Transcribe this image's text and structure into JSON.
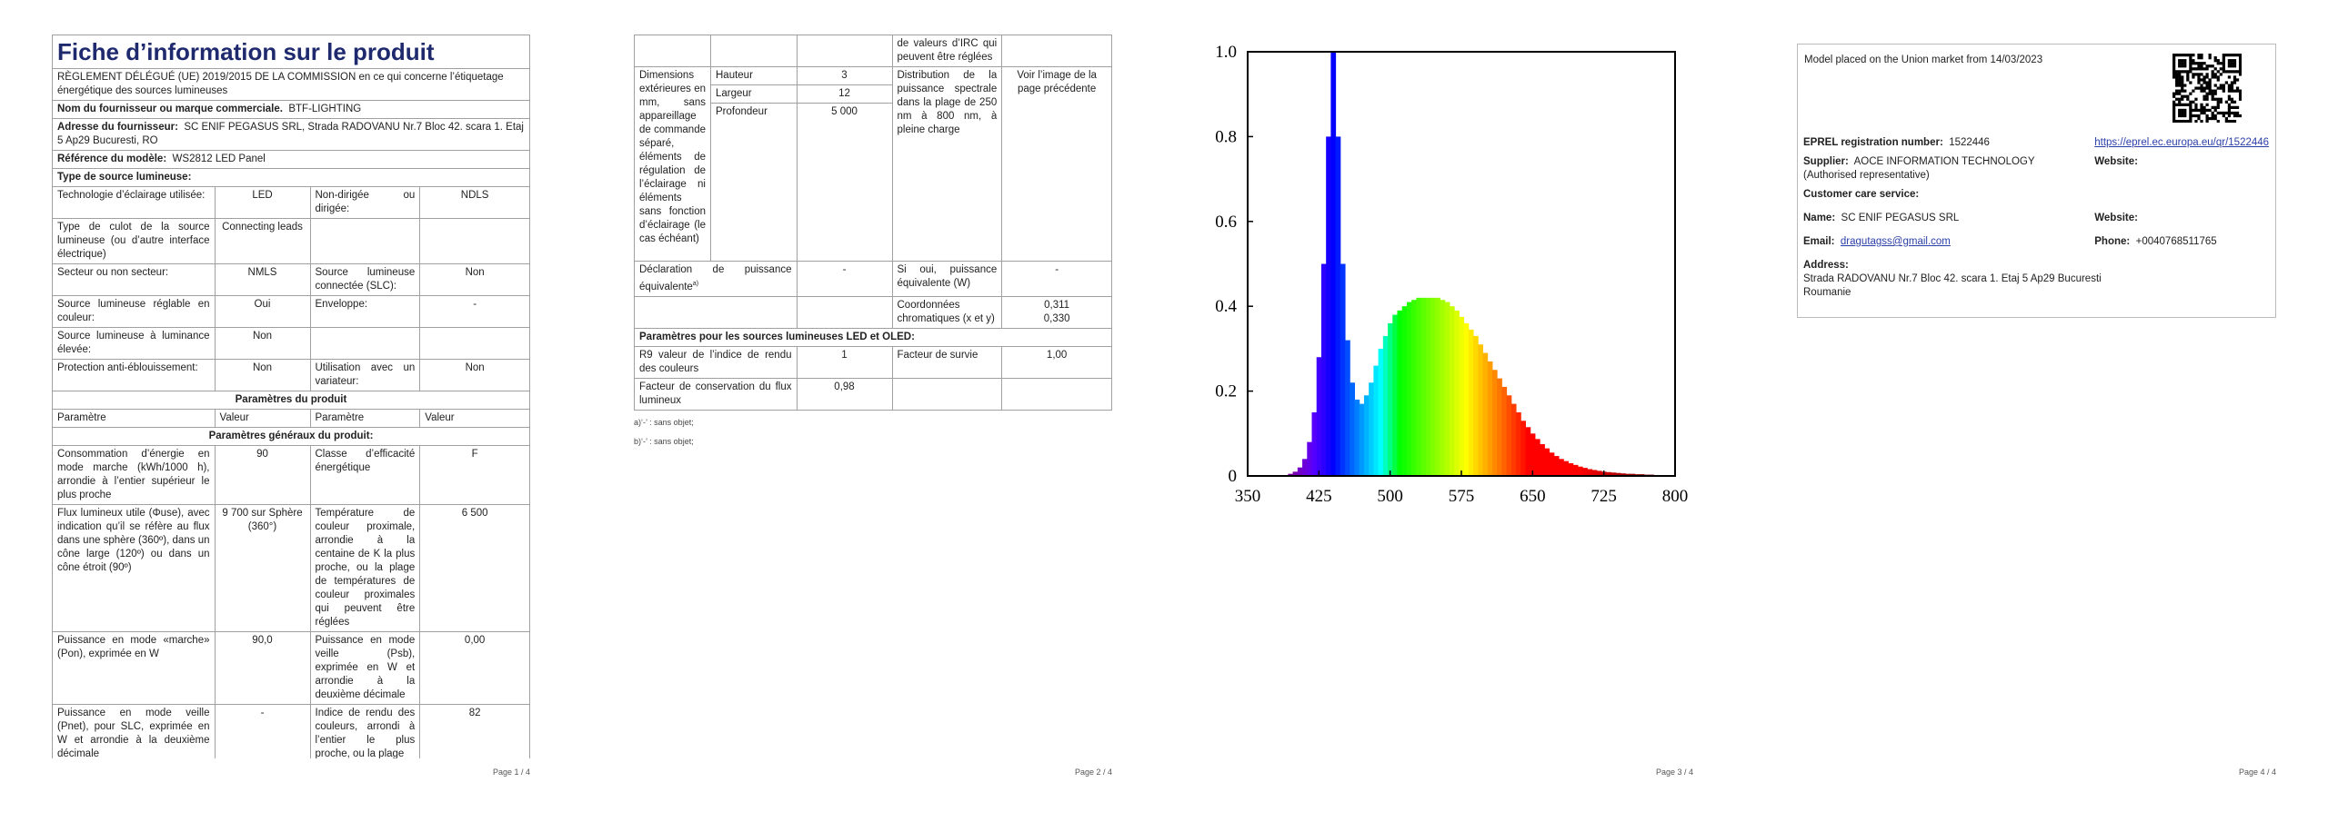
{
  "page1": {
    "title": "Fiche d’information sur le produit",
    "regulation": "RÈGLEMENT DÉLÉGUÉ (UE) 2019/2015 DE LA COMMISSION en ce qui concerne l’étiquetage énergétique des sources lumineuses",
    "supplier": {
      "label": "Nom du fournisseur ou marque commerciale.",
      "value": "BTF-LIGHTING"
    },
    "address": {
      "label": "Adresse du fournisseur:",
      "value": "SC ENIF PEGASUS SRL, Strada RADOVANU Nr.7 Bloc 42. scara 1. Etaj 5 Ap29 Bucuresti, RO"
    },
    "model": {
      "label": "Référence du modèle:",
      "value": "WS2812 LED Panel"
    },
    "source_type_heading": "Type de source lumineuse:",
    "source_rows": [
      [
        "Technologie d’éclairage utilisée:",
        "LED",
        "Non-dirigée ou dirigée:",
        "NDLS"
      ],
      [
        "Type de culot de la source lumineuse (ou d’autre interface électrique)",
        "Connecting leads",
        null,
        null
      ],
      [
        "Secteur ou non secteur:",
        "NMLS",
        "Source lumineuse connectée (SLC):",
        "Non"
      ],
      [
        "Source lumineuse réglable en couleur:",
        "Oui",
        "Enveloppe:",
        "-"
      ],
      [
        "Source lumineuse à luminance élevée:",
        "Non",
        null,
        null
      ],
      [
        "Protection anti-éblouissement:",
        "Non",
        "Utilisation avec un variateur:",
        "Non"
      ]
    ],
    "params_heading": "Paramètres du produit",
    "params_header": [
      "Paramètre",
      "Valeur",
      "Paramètre",
      "Valeur"
    ],
    "general_heading": "Paramètres généraux du produit:",
    "general_rows": [
      [
        "Consommation d’énergie en mode marche (kWh/1000 h), arrondie à l’entier supérieur le plus proche",
        "90",
        "Classe d’efficacité énergétique",
        "F"
      ],
      [
        "Flux lumineux utile (Φuse), avec indication qu’il se réfère au flux dans une sphère (360º), dans un cône large (120º) ou dans un cône étroit (90º)",
        "9 700 sur Sphère (360°)",
        "Température de couleur proximale, arrondie à la centaine de K la plus proche, ou la plage de températures de couleur proximales qui peuvent être réglées",
        "6 500"
      ],
      [
        "Puissance en mode «marche» (Pon), exprimée en W",
        "90,0",
        "Puissance en mode veille (Psb), exprimée en W et arrondie à la deuxième décimale",
        "0,00"
      ],
      [
        "Puissance en mode veille (Pnet), pour SLC, exprimée en W et arrondie à la deuxième décimale",
        "-",
        "Indice de rendu des couleurs, arrondi à l’entier le plus proche, ou la plage",
        "82"
      ]
    ],
    "page_number": "Page 1 / 4"
  },
  "page2": {
    "continuation": "de valeurs d’IRC qui peuvent être réglées",
    "dimensions": {
      "label": "Dimensions extérieures en mm, sans appareillage de commande séparé, éléments de régulation de l’éclairage ni éléments sans fonction d’éclairage (le cas échéant)",
      "items": [
        {
          "name": "Hauteur",
          "value": "3"
        },
        {
          "name": "Largeur",
          "value": "12"
        },
        {
          "name": "Profondeur",
          "value": "5 000"
        }
      ],
      "spd_label": "Distribution de la puissance spectrale dans la plage de 250 nm à 800 nm, à pleine charge",
      "spd_value": "Voir l’image de la page précédente"
    },
    "equivalent": {
      "label": "Déclaration de puissance équivalente",
      "footnote": "a)",
      "value": "-",
      "if_label": "Si oui, puissance équivalente (W)",
      "if_value": "-"
    },
    "chroma": {
      "label": "Coordonnées chromatiques (x et y)",
      "values": [
        "0,311",
        "0,330"
      ]
    },
    "led_heading": "Paramètres pour les sources lumineuses LED et OLED:",
    "r9": {
      "label": "R9 valeur de l’indice de rendu des couleurs",
      "value": "1",
      "survival_label": "Facteur de survie",
      "survival_value": "1,00"
    },
    "flux_maintenance": {
      "label": "Facteur de conservation du flux lumineux",
      "value": "0,98"
    },
    "footnotes": [
      "a)‘-’ : sans objet;",
      "b)‘-’ : sans objet;"
    ],
    "page_number": "Page 2 / 4"
  },
  "chart_data": {
    "type": "bar",
    "x": [
      390,
      395,
      400,
      405,
      410,
      415,
      420,
      425,
      430,
      435,
      440,
      445,
      450,
      455,
      460,
      465,
      470,
      475,
      480,
      485,
      490,
      495,
      500,
      505,
      510,
      515,
      520,
      525,
      530,
      535,
      540,
      545,
      550,
      555,
      560,
      565,
      570,
      575,
      580,
      585,
      590,
      595,
      600,
      605,
      610,
      615,
      620,
      625,
      630,
      635,
      640,
      645,
      650,
      655,
      660,
      665,
      670,
      675,
      680,
      685,
      690,
      695,
      700,
      705,
      710,
      715,
      720,
      725,
      730,
      735,
      740,
      745,
      750,
      755,
      760,
      765,
      770,
      775,
      780
    ],
    "values": [
      0,
      0.005,
      0.01,
      0.02,
      0.04,
      0.08,
      0.15,
      0.28,
      0.5,
      0.8,
      1.0,
      0.8,
      0.5,
      0.32,
      0.22,
      0.18,
      0.17,
      0.19,
      0.22,
      0.26,
      0.3,
      0.33,
      0.36,
      0.38,
      0.39,
      0.4,
      0.41,
      0.415,
      0.42,
      0.42,
      0.42,
      0.42,
      0.42,
      0.415,
      0.41,
      0.4,
      0.39,
      0.375,
      0.36,
      0.345,
      0.33,
      0.31,
      0.29,
      0.27,
      0.25,
      0.23,
      0.21,
      0.19,
      0.17,
      0.15,
      0.13,
      0.115,
      0.1,
      0.087,
      0.075,
      0.065,
      0.055,
      0.047,
      0.04,
      0.035,
      0.03,
      0.026,
      0.022,
      0.019,
      0.016,
      0.014,
      0.012,
      0.01,
      0.009,
      0.008,
      0.007,
      0.006,
      0.005,
      0.005,
      0.004,
      0.004,
      0.003,
      0.003,
      0
    ],
    "xlim": [
      350,
      800
    ],
    "xticks": [
      350,
      425,
      500,
      575,
      650,
      725,
      800
    ],
    "ylim": [
      0,
      1
    ],
    "yticks": [
      0,
      0.2,
      0.4,
      0.6,
      0.8,
      {
        "value": 1,
        "label": "1.0"
      }
    ]
  },
  "page3": {
    "page_number": "Page 3 / 4"
  },
  "page4": {
    "placed": "Model placed on the Union market from 14/03/2023",
    "eprel": {
      "label": "EPREL registration number:",
      "value": "1522446",
      "link": "https://eprel.ec.europa.eu/qr/1522446"
    },
    "supplier": {
      "label": "Supplier:",
      "value": "AOCE INFORMATION TECHNOLOGY (Authorised representative)",
      "website": "Website:"
    },
    "care_heading": "Customer care service:",
    "name": {
      "label": "Name:",
      "value": "SC ENIF PEGASUS SRL",
      "website": "Website:"
    },
    "email": {
      "label": "Email:",
      "value": "dragutagss@gmail.com",
      "phone_label": "Phone:",
      "phone": "+0040768511765"
    },
    "address": {
      "label": "Address:",
      "value": "Strada RADOVANU Nr.7 Bloc 42. scara 1. Etaj 5 Ap29 Bucuresti Roumanie"
    },
    "page_number": "Page 4 / 4"
  }
}
